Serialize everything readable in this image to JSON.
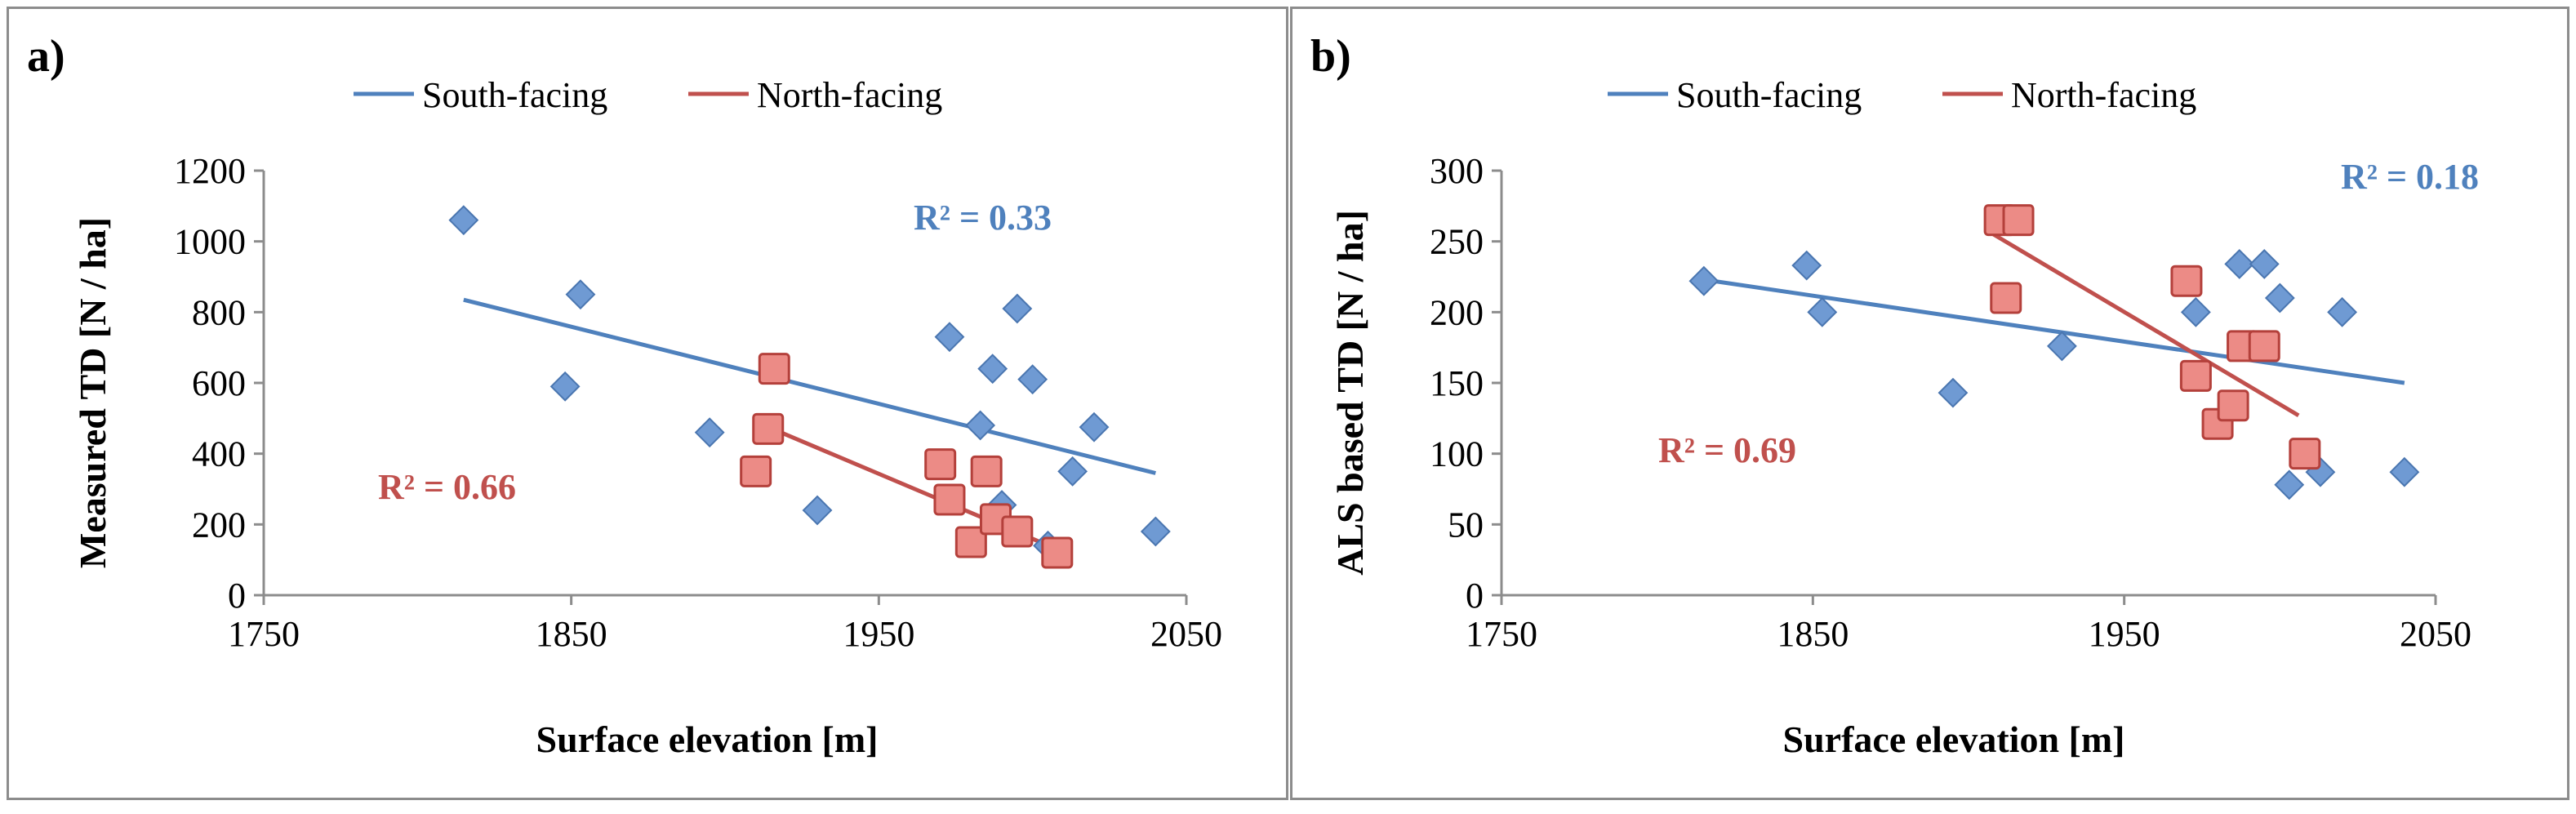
{
  "chart_data": [
    {
      "type": "scatter",
      "panel_label": "a)",
      "xlabel": "Surface elevation [m]",
      "ylabel": "Measured TD [N / ha]",
      "xlim": [
        1750,
        2050
      ],
      "ylim": [
        0,
        1200
      ],
      "xticks": [
        1750,
        1850,
        1950,
        2050
      ],
      "yticks": [
        0,
        200,
        400,
        600,
        800,
        1000,
        1200
      ],
      "legend": [
        "South-facing",
        "North-facing"
      ],
      "series": [
        {
          "name": "South-facing",
          "color": "#4f81bd",
          "marker": "diamond",
          "x": [
            1815,
            1848,
            1853,
            1895,
            1930,
            1973,
            1983,
            1987,
            1990,
            1995,
            2000,
            2005,
            2013,
            2020,
            2040
          ],
          "y": [
            1060,
            590,
            850,
            460,
            240,
            730,
            480,
            640,
            255,
            810,
            610,
            140,
            350,
            475,
            180
          ],
          "trend": {
            "x": [
              1815,
              2040
            ],
            "y": [
              835,
              345
            ]
          },
          "r2_label": "R² = 0.33"
        },
        {
          "name": "North-facing",
          "color": "#c0504d",
          "marker": "square",
          "x": [
            1910,
            1914,
            1916,
            1970,
            1973,
            1980,
            1985,
            1988,
            1995,
            2008
          ],
          "y": [
            350,
            470,
            640,
            370,
            270,
            150,
            350,
            215,
            180,
            120
          ],
          "trend": {
            "x": [
              1910,
              2008
            ],
            "y": [
              490,
              130
            ]
          },
          "r2_label": "R² = 0.66"
        }
      ]
    },
    {
      "type": "scatter",
      "panel_label": "b)",
      "xlabel": "Surface elevation [m]",
      "ylabel": "ALS based TD [N / ha]",
      "xlim": [
        1750,
        2050
      ],
      "ylim": [
        0,
        300
      ],
      "xticks": [
        1750,
        1850,
        1950,
        2050
      ],
      "yticks": [
        0,
        50,
        100,
        150,
        200,
        250,
        300
      ],
      "legend": [
        "South-facing",
        "North-facing"
      ],
      "series": [
        {
          "name": "South-facing",
          "color": "#4f81bd",
          "marker": "diamond",
          "x": [
            1815,
            1848,
            1853,
            1895,
            1930,
            1973,
            1987,
            1995,
            2000,
            2003,
            2013,
            2020,
            2040
          ],
          "y": [
            222,
            233,
            200,
            143,
            176,
            200,
            234,
            234,
            210,
            78,
            87,
            200,
            87
          ],
          "trend": {
            "x": [
              1815,
              2040
            ],
            "y": [
              223,
              150
            ]
          },
          "r2_label": "R² = 0.18"
        },
        {
          "name": "North-facing",
          "color": "#c0504d",
          "marker": "square",
          "x": [
            1910,
            1916,
            1912,
            1970,
            1973,
            1980,
            1985,
            1988,
            1995,
            2008
          ],
          "y": [
            265,
            265,
            210,
            222,
            155,
            121,
            134,
            176,
            176,
            100
          ],
          "trend": {
            "x": [
              1908,
              2006
            ],
            "y": [
              255,
              127
            ]
          },
          "r2_label": "R² = 0.69"
        }
      ]
    }
  ]
}
